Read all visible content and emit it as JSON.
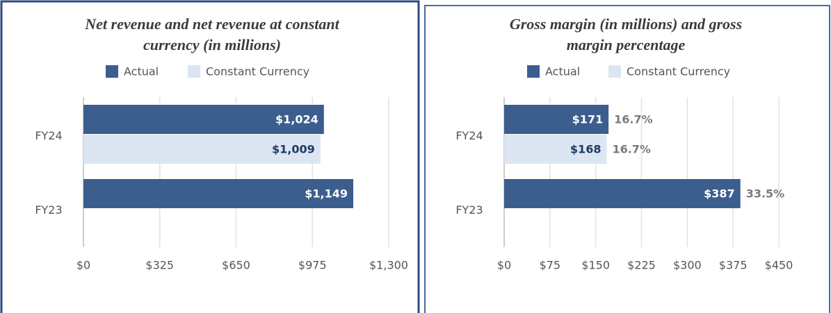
{
  "chart_data": [
    {
      "type": "bar",
      "orientation": "horizontal",
      "title": "Net revenue and net revenue at constant currency (in millions)",
      "categories": [
        "FY24",
        "FY23"
      ],
      "series": [
        {
          "name": "Actual",
          "color": "#3b5e8e",
          "values": [
            1024,
            1149
          ],
          "value_labels": [
            "$1,024",
            "$1,149"
          ]
        },
        {
          "name": "Constant Currency",
          "color": "#dce6f2",
          "values": [
            1009,
            null
          ],
          "value_labels": [
            "$1,009",
            null
          ]
        }
      ],
      "xlim": [
        0,
        1300
      ],
      "xticks": [
        {
          "value": 0,
          "label": "$0"
        },
        {
          "value": 325,
          "label": "$325"
        },
        {
          "value": 650,
          "label": "$650"
        },
        {
          "value": 975,
          "label": "$975"
        },
        {
          "value": 1300,
          "label": "$1,300"
        }
      ],
      "grid": true,
      "legend": "top"
    },
    {
      "type": "bar",
      "orientation": "horizontal",
      "title": "Gross margin (in millions) and gross margin percentage",
      "categories": [
        "FY24",
        "FY23"
      ],
      "series": [
        {
          "name": "Actual",
          "color": "#3b5e8e",
          "values": [
            171,
            387
          ],
          "value_labels": [
            "$171",
            "$387"
          ],
          "percentages": [
            16.7,
            33.5
          ],
          "percentage_labels": [
            "16.7%",
            "33.5%"
          ]
        },
        {
          "name": "Constant Currency",
          "color": "#dce6f2",
          "values": [
            168,
            null
          ],
          "value_labels": [
            "$168",
            null
          ],
          "percentages": [
            16.7,
            null
          ],
          "percentage_labels": [
            "16.7%",
            null
          ]
        }
      ],
      "xlim": [
        0,
        450
      ],
      "xticks": [
        {
          "value": 0,
          "label": "$0"
        },
        {
          "value": 75,
          "label": "$75"
        },
        {
          "value": 150,
          "label": "$150"
        },
        {
          "value": 225,
          "label": "$225"
        },
        {
          "value": 300,
          "label": "$300"
        },
        {
          "value": 375,
          "label": "$375"
        },
        {
          "value": 450,
          "label": "$450"
        }
      ],
      "grid": true,
      "legend": "top"
    }
  ]
}
